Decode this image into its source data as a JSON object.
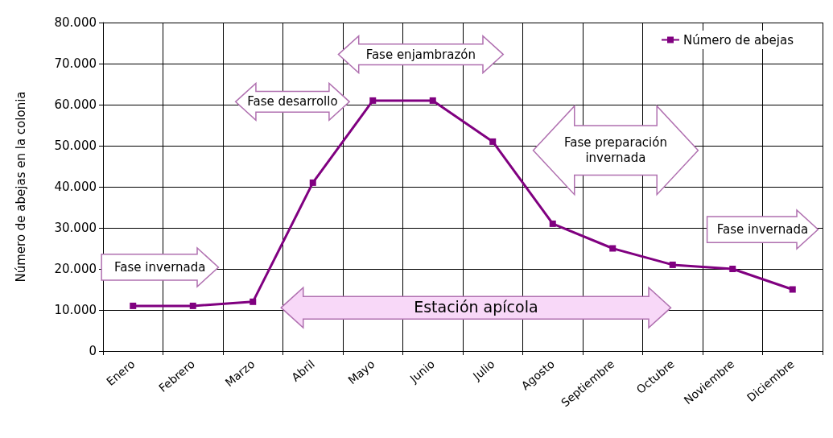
{
  "chart_data": {
    "type": "line",
    "ylabel": "Número de abejas en la colonia",
    "categories": [
      "Enero",
      "Febrero",
      "Marzo",
      "Abril",
      "Mayo",
      "Junio",
      "Julio",
      "Agosto",
      "Septiembre",
      "Octubre",
      "Noviembre",
      "Diciembre"
    ],
    "series": [
      {
        "name": "Número de abejas",
        "color": "#800080",
        "values": [
          11000,
          11000,
          12000,
          41000,
          61000,
          61000,
          51000,
          31000,
          25000,
          21000,
          20000,
          15000
        ]
      }
    ],
    "ylim": [
      0,
      80000
    ],
    "yticks": [
      0,
      {
        "value": 10000,
        "label": "10.000"
      },
      {
        "value": 20000,
        "label": "20.000"
      },
      {
        "value": 30000,
        "label": "30.000"
      },
      {
        "value": 40000,
        "label": "40.000"
      },
      {
        "value": 50000,
        "label": "50.000"
      },
      {
        "value": 60000,
        "label": "60.000"
      },
      {
        "value": 70000,
        "label": "70.000"
      },
      {
        "value": 80000,
        "label": "80.000"
      }
    ],
    "grid": true,
    "legend": "top right",
    "marker": "square",
    "line_style": "solid",
    "annotations": [
      "Fase invernada",
      "Fase desarrollo",
      "Fase enjambrazón",
      "Fase preparación invernada",
      "Fase invernada",
      "Estación apícola"
    ]
  }
}
